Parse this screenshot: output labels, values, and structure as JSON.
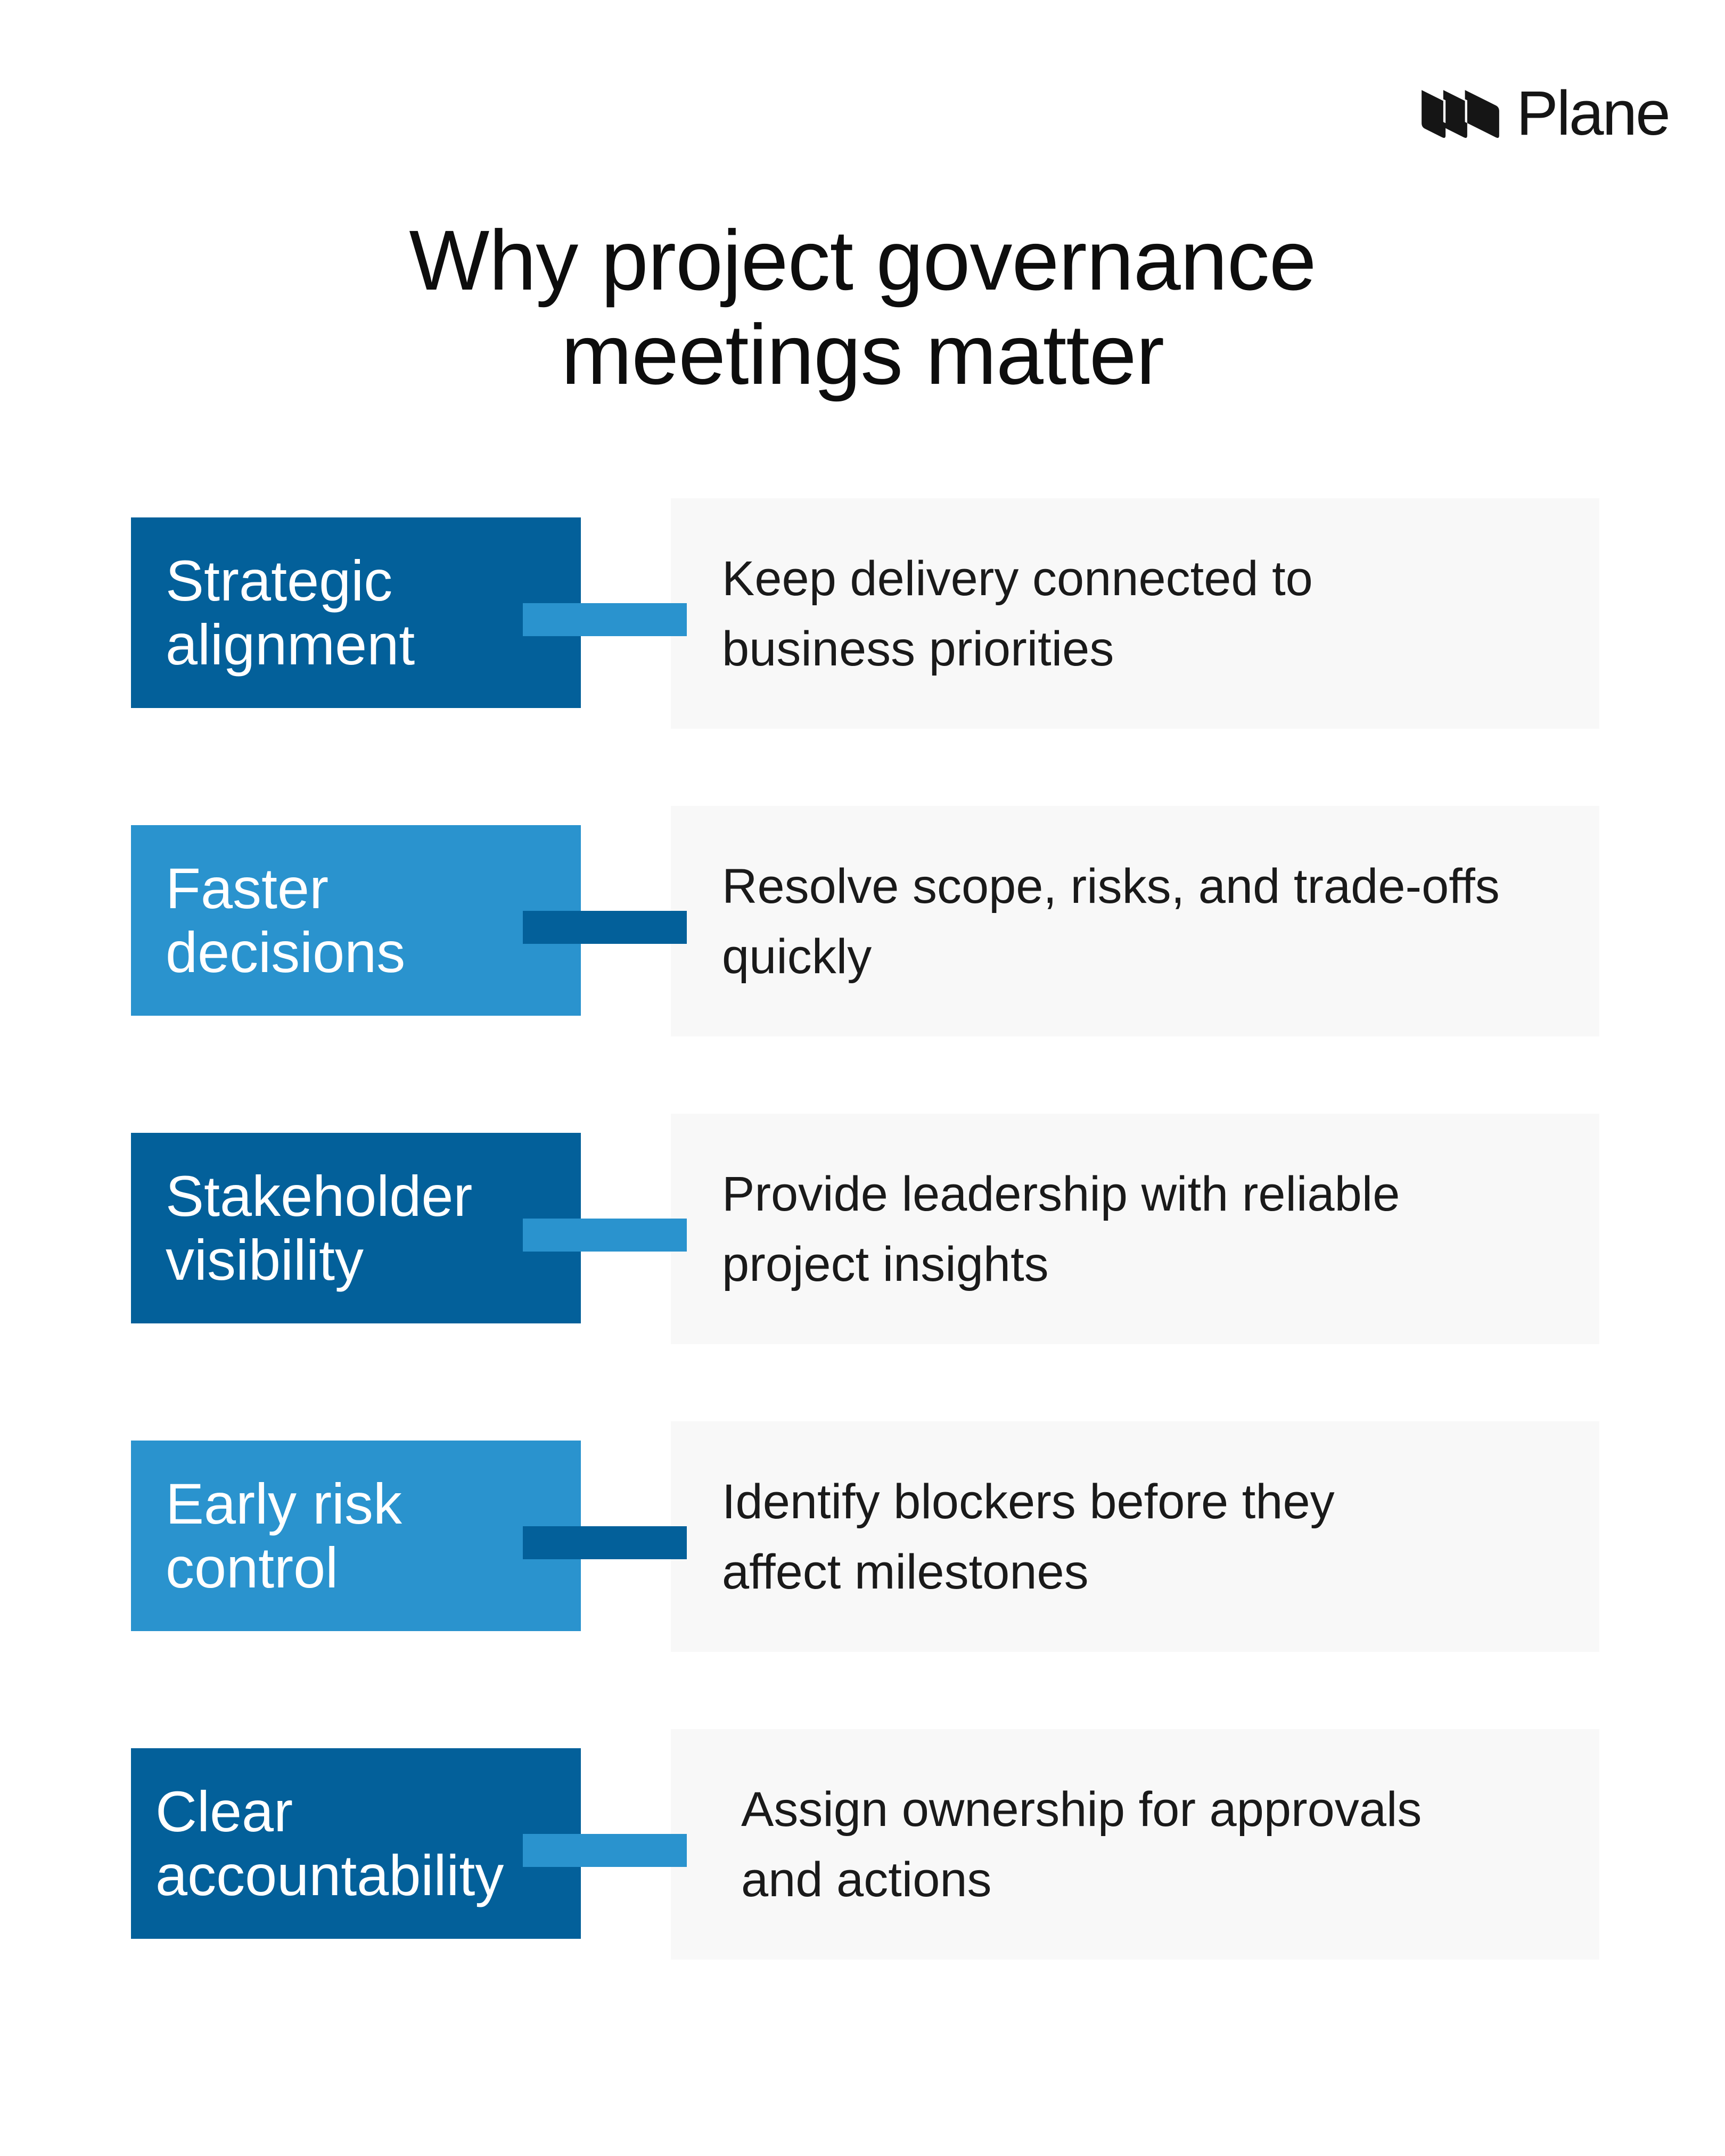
{
  "brand": {
    "name": "Plane",
    "icon": "plane-logo-icon"
  },
  "title": {
    "lines": [
      "Why project governance",
      "meetings matter"
    ]
  },
  "colors": {
    "dark_blue": "#03609a",
    "light_blue": "#2a93ce",
    "panel": "#f8f8f8"
  },
  "items": [
    {
      "label": [
        "Strategic",
        "alignment"
      ],
      "description": [
        "Keep delivery connected to",
        "business priorities"
      ]
    },
    {
      "label": [
        "Faster",
        "decisions"
      ],
      "description": [
        "Resolve scope, risks, and trade-offs",
        "quickly"
      ]
    },
    {
      "label": [
        "Stakeholder",
        "visibility"
      ],
      "description": [
        "Provide leadership with reliable",
        "project insights"
      ]
    },
    {
      "label": [
        "Early risk",
        "control"
      ],
      "description": [
        "Identify blockers before they",
        "affect milestones"
      ]
    },
    {
      "label": [
        "Clear",
        "accountability"
      ],
      "description": [
        "Assign ownership for approvals",
        "and actions"
      ]
    }
  ]
}
